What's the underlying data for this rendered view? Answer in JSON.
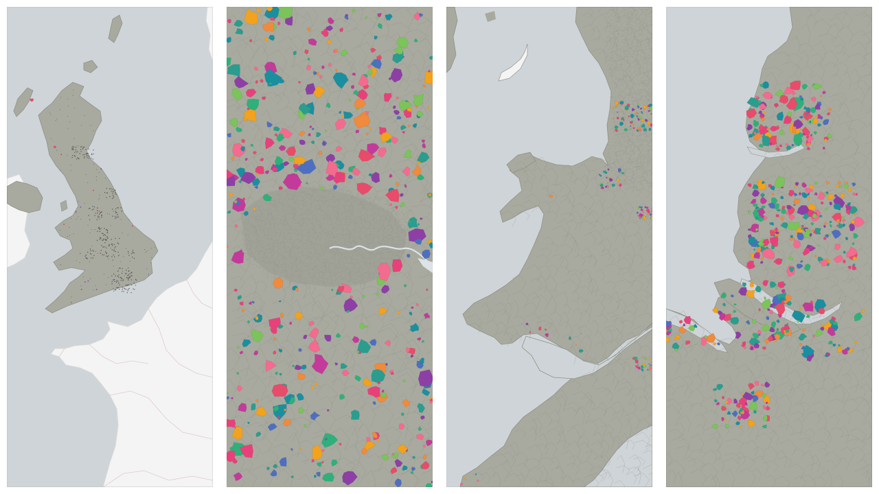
{
  "colors": {
    "sea": "#cfd4d8",
    "land": "#a8aa9f",
    "land_edge": "#8f9187",
    "foreign_land": "#f4f4f4",
    "boundary": "#8a8c82",
    "river": "#dde3e6",
    "palette": [
      "#2a9d8f",
      "#1a8fa0",
      "#e8417a",
      "#8e3fa5",
      "#f2a21c",
      "#e94b6b",
      "#f08a3c",
      "#4e6fbf",
      "#7bc35a",
      "#f36b8e",
      "#2fb07a",
      "#c43a9a"
    ]
  },
  "panels": [
    {
      "name": "map-panel-great-britain-overview",
      "view": "overview"
    },
    {
      "name": "map-panel-london-region",
      "view": "london"
    },
    {
      "name": "map-panel-wales-southwest",
      "view": "wales"
    },
    {
      "name": "map-panel-liverpool-mersey",
      "view": "mersey"
    }
  ]
}
